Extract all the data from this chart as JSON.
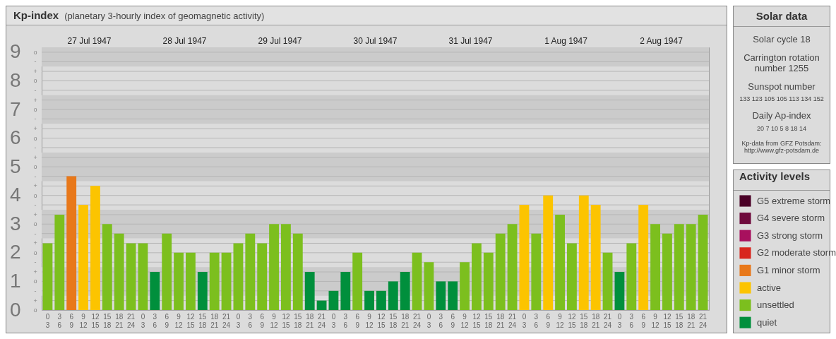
{
  "chart_data": [
    {
      "type": "bar",
      "title": "Kp-index",
      "subtitle": "(planetary 3-hourly index of geomagnetic activity)",
      "legend_title": "Activity levels",
      "legend": "right",
      "grid": "y",
      "annotations": [
        "27 Jul 1947",
        "28 Jul 1947",
        "29 Jul 1947",
        "30 Jul 1947",
        "31 Jul 1947",
        "1 Aug 1947",
        "2 Aug 1947",
        "o",
        "+",
        "-",
        "o",
        "+",
        "-",
        "o",
        "+",
        "-",
        "o",
        "+",
        "-",
        "o",
        "+",
        "-",
        "o",
        "+",
        "-",
        "o",
        "+",
        "-",
        "o",
        "+",
        "-",
        "o",
        "+",
        "-",
        "o"
      ],
      "categories": [
        "0\n3",
        "3\n6",
        "6\n9",
        "9\n12",
        "12\n15",
        "15\n18",
        "18\n21",
        "21\n24",
        "0\n3",
        "3\n6",
        "6\n9",
        "9\n12",
        "12\n15",
        "15\n18",
        "18\n21",
        "21\n24",
        "0\n3",
        "3\n6",
        "6\n9",
        "9\n12",
        "12\n15",
        "15\n18",
        "18\n21",
        "21\n24",
        "0\n3",
        "3\n6",
        "6\n9",
        "9\n12",
        "12\n15",
        "15\n18",
        "18\n21",
        "21\n24",
        "0\n3",
        "3\n6",
        "6\n9",
        "9\n12",
        "12\n15",
        "15\n18",
        "18\n21",
        "21\n24",
        "0\n3",
        "3\n6",
        "6\n9",
        "9\n12",
        "12\n15",
        "15\n18",
        "18\n21",
        "21\n24",
        "0\n3",
        "3\n6",
        "6\n9",
        "9\n12",
        "12\n15",
        "15\n18",
        "18\n21",
        "21\n24"
      ],
      "ylim": [
        0,
        9.17
      ],
      "yticks": [
        0,
        {
          "value": 0.33,
          "label": null
        },
        {
          "value": 0.67,
          "label": null
        },
        1,
        {
          "value": 1.33,
          "label": null
        },
        {
          "value": 1.67,
          "label": null
        },
        2,
        {
          "value": 2.33,
          "label": null
        },
        {
          "value": 2.67,
          "label": null
        },
        3,
        {
          "value": 3.33,
          "label": null
        },
        {
          "value": 3.67,
          "label": null
        },
        4,
        {
          "value": 4.33,
          "label": null
        },
        {
          "value": 4.67,
          "label": null
        },
        5,
        {
          "value": 5.33,
          "label": null
        },
        {
          "value": 5.67,
          "label": null
        },
        6,
        {
          "value": 6.33,
          "label": null
        },
        {
          "value": 6.67,
          "label": null
        },
        7,
        {
          "value": 7.33,
          "label": null
        },
        {
          "value": 7.67,
          "label": null
        },
        8,
        {
          "value": 8.33,
          "label": null
        },
        {
          "value": 8.67,
          "label": null
        },
        9
      ],
      "bands": [
        {
          "axis": "y",
          "from": 0.5,
          "to": 1.5,
          "color": "#cbcbcb"
        },
        {
          "axis": "y",
          "from": 2.5,
          "to": 3.5,
          "color": "#cbcbcb"
        },
        {
          "axis": "y",
          "from": 4.5,
          "to": 5.5,
          "color": "#cbcbcb"
        },
        {
          "axis": "y",
          "from": 6.5,
          "to": 7.5,
          "color": "#cbcbcb"
        },
        {
          "axis": "y",
          "from": 8.5,
          "to": 9.17,
          "color": "#cbcbcb"
        }
      ],
      "series": [
        {
          "name": "G5 extreme storm",
          "color": "#4a0026",
          "values": [
            null,
            null,
            null,
            null,
            null,
            null,
            null,
            null,
            null,
            null,
            null,
            null,
            null,
            null,
            null,
            null,
            null,
            null,
            null,
            null,
            null,
            null,
            null,
            null,
            null,
            null,
            null,
            null,
            null,
            null,
            null,
            null,
            null,
            null,
            null,
            null,
            null,
            null,
            null,
            null,
            null,
            null,
            null,
            null,
            null,
            null,
            null,
            null,
            null,
            null,
            null,
            null,
            null,
            null,
            null,
            null
          ]
        },
        {
          "name": "G4 severe storm",
          "color": "#6e0a3c",
          "values": [
            null,
            null,
            null,
            null,
            null,
            null,
            null,
            null,
            null,
            null,
            null,
            null,
            null,
            null,
            null,
            null,
            null,
            null,
            null,
            null,
            null,
            null,
            null,
            null,
            null,
            null,
            null,
            null,
            null,
            null,
            null,
            null,
            null,
            null,
            null,
            null,
            null,
            null,
            null,
            null,
            null,
            null,
            null,
            null,
            null,
            null,
            null,
            null,
            null,
            null,
            null,
            null,
            null,
            null,
            null,
            null
          ]
        },
        {
          "name": "G3 strong storm",
          "color": "#a8105e",
          "values": [
            null,
            null,
            null,
            null,
            null,
            null,
            null,
            null,
            null,
            null,
            null,
            null,
            null,
            null,
            null,
            null,
            null,
            null,
            null,
            null,
            null,
            null,
            null,
            null,
            null,
            null,
            null,
            null,
            null,
            null,
            null,
            null,
            null,
            null,
            null,
            null,
            null,
            null,
            null,
            null,
            null,
            null,
            null,
            null,
            null,
            null,
            null,
            null,
            null,
            null,
            null,
            null,
            null,
            null,
            null,
            null
          ]
        },
        {
          "name": "G2 moderate storm",
          "color": "#d8261e",
          "values": [
            null,
            null,
            null,
            null,
            null,
            null,
            null,
            null,
            null,
            null,
            null,
            null,
            null,
            null,
            null,
            null,
            null,
            null,
            null,
            null,
            null,
            null,
            null,
            null,
            null,
            null,
            null,
            null,
            null,
            null,
            null,
            null,
            null,
            null,
            null,
            null,
            null,
            null,
            null,
            null,
            null,
            null,
            null,
            null,
            null,
            null,
            null,
            null,
            null,
            null,
            null,
            null,
            null,
            null,
            null,
            null
          ]
        },
        {
          "name": "G1 minor storm",
          "color": "#e8781a",
          "values": [
            null,
            null,
            4.67,
            null,
            null,
            null,
            null,
            null,
            null,
            null,
            null,
            null,
            null,
            null,
            null,
            null,
            null,
            null,
            null,
            null,
            null,
            null,
            null,
            null,
            null,
            null,
            null,
            null,
            null,
            null,
            null,
            null,
            null,
            null,
            null,
            null,
            null,
            null,
            null,
            null,
            null,
            null,
            null,
            null,
            null,
            null,
            null,
            null,
            null,
            null,
            null,
            null,
            null,
            null,
            null,
            null
          ]
        },
        {
          "name": "active",
          "color": "#fcc400",
          "values": [
            null,
            null,
            null,
            3.67,
            4.33,
            null,
            null,
            null,
            null,
            null,
            null,
            null,
            null,
            null,
            null,
            null,
            null,
            null,
            null,
            null,
            null,
            null,
            null,
            null,
            null,
            null,
            null,
            null,
            null,
            null,
            null,
            null,
            null,
            null,
            null,
            null,
            null,
            null,
            null,
            null,
            3.67,
            null,
            4,
            null,
            null,
            4,
            3.67,
            null,
            null,
            null,
            3.67,
            null,
            null,
            null,
            null,
            null
          ]
        },
        {
          "name": "unsettled",
          "color": "#7cbf1e",
          "values": [
            2.33,
            3.33,
            null,
            null,
            null,
            3,
            2.67,
            2.33,
            2.33,
            null,
            2.67,
            2,
            2,
            null,
            2,
            2,
            2.33,
            2.67,
            2.33,
            3,
            3,
            2.67,
            null,
            null,
            null,
            null,
            2,
            null,
            null,
            null,
            null,
            2,
            1.67,
            null,
            null,
            1.67,
            2.33,
            2,
            2.67,
            3,
            null,
            2.67,
            null,
            3.33,
            2.33,
            null,
            null,
            2,
            null,
            2.33,
            null,
            3,
            2.67,
            3,
            3,
            3.33
          ]
        },
        {
          "name": "quiet",
          "color": "#008f3c",
          "values": [
            null,
            null,
            null,
            null,
            null,
            null,
            null,
            null,
            null,
            1.33,
            null,
            null,
            null,
            1.33,
            null,
            null,
            null,
            null,
            null,
            null,
            null,
            null,
            1.33,
            0.33,
            0.67,
            1.33,
            null,
            0.67,
            0.67,
            1,
            1.33,
            null,
            null,
            1,
            1,
            null,
            null,
            null,
            null,
            null,
            null,
            null,
            null,
            null,
            null,
            null,
            null,
            null,
            1.33,
            null,
            null,
            null,
            null,
            null,
            null,
            null
          ]
        }
      ]
    },
    {
      "type": "other",
      "title": "Solar data",
      "annotations": [
        "Solar cycle 18",
        "Carrington rotation number 1255",
        "Sunspot number",
        "133 123 105 105 113 134 152",
        "Daily Ap-index",
        "20 7 10 5 8 18 14",
        "Kp-data from GFZ Potsdam: http://www.gfz-potsdam.de"
      ]
    }
  ]
}
